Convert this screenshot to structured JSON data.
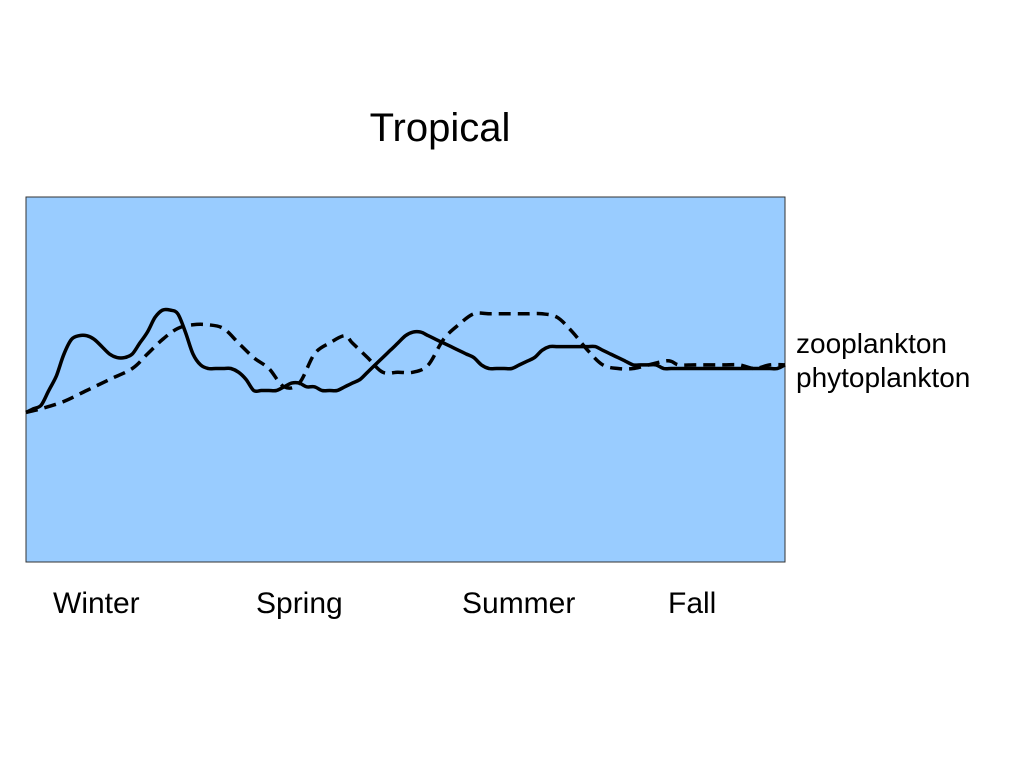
{
  "slide": {
    "title": "Tropical"
  },
  "chart_data": {
    "type": "line",
    "title": "Tropical",
    "xlabel": "",
    "ylabel": "",
    "categories": [
      "Winter",
      "Spring",
      "Summer",
      "Fall"
    ],
    "xlim": [
      0,
      100
    ],
    "ylim": [
      0,
      100
    ],
    "x_ticks_shown": false,
    "y_ticks_shown": false,
    "grid": false,
    "plot_background": "#99ccff",
    "plot_border": "#333333",
    "line_color": "#000000",
    "legend_placement": "right",
    "series": [
      {
        "name": "zooplankton",
        "style": "dashed",
        "x": [
          0,
          2,
          5,
          8,
          11,
          14,
          16,
          18,
          20,
          22,
          24,
          26,
          28,
          30,
          32,
          34,
          36,
          38,
          40,
          42,
          43,
          45,
          47,
          49,
          51,
          53,
          55,
          57,
          59,
          61,
          63,
          65,
          66,
          68,
          70,
          72,
          74,
          76,
          78,
          80,
          82,
          84,
          85,
          86,
          88,
          90,
          92,
          94,
          96,
          98,
          100
        ],
        "y": [
          41,
          42,
          44,
          47,
          50,
          53,
          57,
          61,
          64,
          65,
          65,
          64,
          60,
          56,
          53,
          48,
          49,
          57,
          60,
          62,
          60,
          56,
          52,
          52,
          52,
          54,
          61,
          65,
          68,
          68,
          68,
          68,
          68,
          68,
          67,
          63,
          58,
          54,
          53,
          53,
          54,
          55,
          55,
          54,
          54,
          54,
          54,
          54,
          53,
          54,
          54
        ]
      },
      {
        "name": "phytoplankton",
        "style": "solid",
        "x": [
          0,
          1,
          2,
          3,
          4,
          5,
          6,
          7,
          8,
          9,
          10,
          11,
          12,
          13,
          14,
          15,
          16,
          17,
          18,
          19,
          20,
          21,
          22,
          23,
          24,
          25,
          26,
          27,
          28,
          29,
          30,
          31,
          32,
          33,
          34,
          35,
          36,
          37,
          38,
          39,
          40,
          41,
          42,
          43,
          44,
          45,
          46,
          47,
          48,
          49,
          50,
          51,
          52,
          53,
          54,
          55,
          56,
          57,
          58,
          59,
          60,
          61,
          62,
          63,
          64,
          65,
          66,
          67,
          68,
          69,
          70,
          71,
          72,
          73,
          74,
          75,
          76,
          77,
          78,
          79,
          80,
          81,
          82,
          83,
          84,
          85,
          86,
          87,
          88,
          89,
          90,
          91,
          92,
          93,
          94,
          95,
          96,
          97,
          98,
          99,
          100
        ],
        "y": [
          41,
          42,
          43,
          47,
          51,
          57,
          61,
          62,
          62,
          61,
          59,
          57,
          56,
          56,
          57,
          60,
          63,
          67,
          69,
          69,
          68,
          63,
          57,
          54,
          53,
          53,
          53,
          53,
          52,
          50,
          47,
          47,
          47,
          47,
          48,
          49,
          49,
          48,
          48,
          47,
          47,
          47,
          48,
          49,
          50,
          52,
          54,
          56,
          58,
          60,
          62,
          63,
          63,
          62,
          61,
          60,
          59,
          58,
          57,
          56,
          54,
          53,
          53,
          53,
          53,
          54,
          55,
          56,
          58,
          59,
          59,
          59,
          59,
          59,
          59,
          59,
          58,
          57,
          56,
          55,
          54,
          54,
          54,
          54,
          53,
          53,
          53,
          53,
          53,
          53,
          53,
          53,
          53,
          53,
          53,
          53,
          53,
          53,
          53,
          53,
          54
        ]
      }
    ]
  }
}
